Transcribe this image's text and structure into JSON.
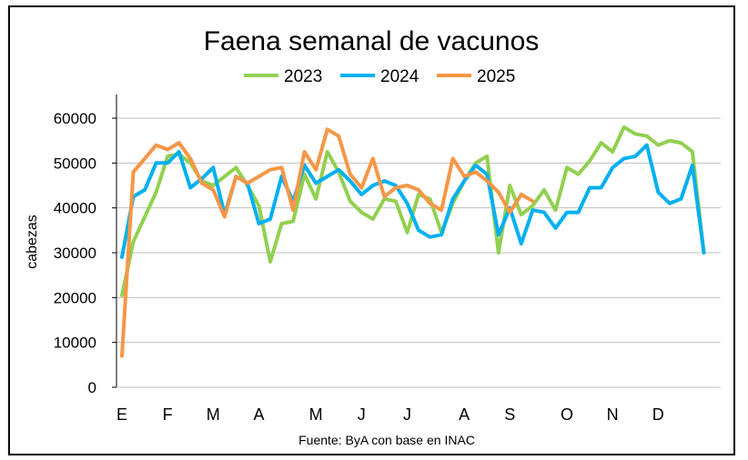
{
  "chart_data": {
    "type": "line",
    "title": "Faena semanal de vacunos",
    "ylabel": "cabezas",
    "xlabel": "",
    "source": "Fuente: ByA con base en INAC",
    "ylim": [
      0,
      60000
    ],
    "yticks": [
      0,
      10000,
      20000,
      30000,
      40000,
      50000,
      60000
    ],
    "yticklabels": [
      "0",
      "10000",
      "20000",
      "30000",
      "40000",
      "50000",
      "60000"
    ],
    "grid": true,
    "legend_position": "top",
    "x_range": [
      1,
      53
    ],
    "month_labels": [
      {
        "label": "E",
        "week": 1
      },
      {
        "label": "F",
        "week": 5
      },
      {
        "label": "M",
        "week": 9
      },
      {
        "label": "A",
        "week": 13
      },
      {
        "label": "M",
        "week": 18
      },
      {
        "label": "J",
        "week": 22
      },
      {
        "label": "J",
        "week": 26
      },
      {
        "label": "A",
        "week": 31
      },
      {
        "label": "S",
        "week": 35
      },
      {
        "label": "O",
        "week": 40
      },
      {
        "label": "N",
        "week": 44
      },
      {
        "label": "D",
        "week": 48
      }
    ],
    "series": [
      {
        "name": "2023",
        "color": "#92D050",
        "values": [
          20500,
          32500,
          38000,
          43500,
          51500,
          52000,
          50000,
          46000,
          45000,
          47000,
          49000,
          45000,
          40500,
          28000,
          36500,
          37000,
          47500,
          42000,
          52500,
          48000,
          41500,
          39000,
          37500,
          42000,
          41500,
          34500,
          43000,
          42000,
          34500,
          41000,
          46000,
          50000,
          51500,
          30000,
          45000,
          38500,
          40500,
          44000,
          39500,
          49000,
          47500,
          50500,
          54500,
          52500,
          58000,
          56500,
          56000,
          54000,
          55000,
          54500,
          52500,
          30000
        ]
      },
      {
        "name": "2024",
        "color": "#00B0F0",
        "values": [
          29000,
          42500,
          44000,
          50000,
          50000,
          52500,
          44500,
          46500,
          49000,
          38500,
          47000,
          45500,
          36500,
          37500,
          47000,
          41500,
          49500,
          45500,
          47000,
          48500,
          46000,
          43000,
          45000,
          46000,
          45000,
          41000,
          35000,
          33500,
          34000,
          42000,
          46000,
          49500,
          47500,
          34000,
          40000,
          32000,
          39500,
          39000,
          35500,
          39000,
          39000,
          44500,
          44500,
          49000,
          51000,
          51500,
          54000,
          43500,
          41000,
          42000,
          49500,
          30000
        ]
      },
      {
        "name": "2025",
        "color": "#F79646",
        "values": [
          7000,
          48000,
          51000,
          54000,
          53000,
          54500,
          51000,
          45500,
          44000,
          38000,
          47000,
          45500,
          47000,
          48500,
          49000,
          39500,
          52500,
          48500,
          57500,
          56000,
          47500,
          44500,
          51000,
          42500,
          44500,
          45000,
          44000,
          41000,
          39500,
          51000,
          47000,
          48000,
          46000,
          43500,
          39000,
          43000,
          41500
        ]
      }
    ]
  }
}
